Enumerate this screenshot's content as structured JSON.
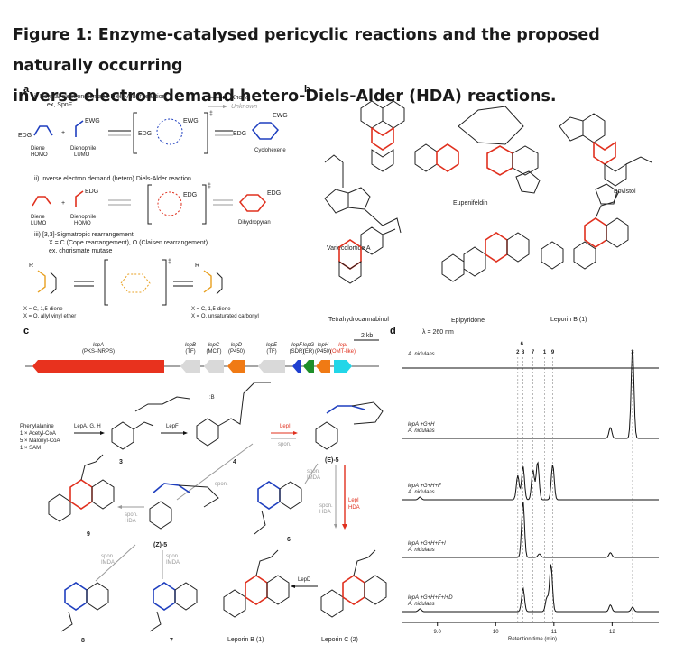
{
  "figure": {
    "title_line1": "Figure 1: Enzyme-catalysed pericyclic reactions and the proposed naturally occurring",
    "title_line2": "inverse electron demand hetero-Diels-Alder (HDA) reactions."
  },
  "panel_a": {
    "letter": "a",
    "i_heading": "i)  Normal electron demand Diels-Alder reaction",
    "i_sub": "ex, SpnF",
    "legend_known": "Known",
    "legend_unknown": "Unknown",
    "edg": "EDG",
    "ewg": "EWG",
    "diene_homo": [
      "Diene",
      "HOMO"
    ],
    "dienophile_lumo": [
      "Dienophile",
      "LUMO"
    ],
    "cyclohexene": "Cyclohexene",
    "ii_heading": "ii)  Inverse electron demand (hetero) Diels-Alder reaction",
    "diene_lumo": [
      "Diene",
      "LUMO"
    ],
    "dienophile_homo": [
      "Dienophile",
      "HOMO"
    ],
    "dihydropyran": "Dihydropyran",
    "iii_heading": "iii)  [3,3]-Sigmatropic rearrangement",
    "iii_sub1": "X = C (Cope rearrangement), O (Claisen rearrangement)",
    "iii_sub2": "ex, chorismate mutase",
    "iii_left1": "X = C, 1,5-diene",
    "iii_left2": "X = O, allyl vinyl ether",
    "iii_right1": "X = C, 1,5-diene",
    "iii_right2": "X = O, unsaturated carbonyl",
    "dagger": "‡"
  },
  "panel_b": {
    "letter": "b",
    "compounds": [
      "Variecolortide A",
      "Eupenifeldin",
      "Bovistol",
      "Tetrahydrocannabinol",
      "Epipyridone",
      "Leporin B (1)"
    ]
  },
  "panel_c": {
    "letter": "c",
    "scale": "2 kb",
    "genes": [
      {
        "name": "lepA",
        "role": "(PKS–NRPS)",
        "color": "#e8321e"
      },
      {
        "name": "lepB",
        "role": "(TF)",
        "color": "#d9d9d9"
      },
      {
        "name": "lepC",
        "role": "(MCT)",
        "color": "#d9d9d9"
      },
      {
        "name": "lepD",
        "role": "(P450)",
        "color": "#f07a14"
      },
      {
        "name": "lepE",
        "role": "(TF)",
        "color": "#d9d9d9"
      },
      {
        "name": "lepF",
        "role": "(SDR)",
        "color": "#1f3fd0"
      },
      {
        "name": "lepG",
        "role": "(ER)",
        "color": "#1e8f2a"
      },
      {
        "name": "lepH",
        "role": "(P450)",
        "color": "#f07a14"
      },
      {
        "name": "lepI",
        "role": "(OMT-like)",
        "color": "#22d6e8"
      }
    ],
    "precursors": [
      "Phenylalanine",
      "1 × Acetyl-CoA",
      "5 × Malonyl-CoA",
      "1 × SAM"
    ],
    "lepAGH": "LepA, G, H",
    "lepF": "LepF",
    "lepI": "LepI",
    "lepI_hda": [
      "LepI",
      "HDA"
    ],
    "lepD": "LepD",
    "spon": "spon.",
    "spon_hda": [
      "spon.",
      "HDA"
    ],
    "spon_imda": [
      "spon.",
      "IMDA"
    ],
    "base": ":B",
    "labels": {
      "c3": "3",
      "c4": "4",
      "c5e": "(E)-5",
      "c5z": "(Z)-5",
      "c6": "6",
      "c7": "7",
      "c8": "8",
      "c9": "9",
      "leporinB": "Leporin B (1)",
      "leporinC": "Leporin C (2)"
    }
  },
  "panel_d": {
    "letter": "d",
    "lambda": "λ = 260 nm",
    "peak_labels_top": [
      "6"
    ],
    "peak_labels": [
      "2",
      "8",
      "7",
      "1",
      "9",
      "3"
    ],
    "traces": [
      {
        "line1": "A. nidulans",
        "line2": ""
      },
      {
        "line1": "lepA +G+H",
        "line2": "A. nidulans"
      },
      {
        "line1": "lepA +G+H+F",
        "line2": "A. nidulans"
      },
      {
        "line1": "lepA +G+H+F+I",
        "line2": "A. nidulans"
      },
      {
        "line1": "lepA +G+H+F+I+D",
        "line2": "A. nidulans"
      }
    ],
    "x_ticks": [
      "9.0",
      "10",
      "11",
      "12"
    ],
    "xlabel": "Retention time (min)"
  },
  "chart_data": {
    "type": "line",
    "title": "λ = 260 nm",
    "xlabel": "Retention time (min)",
    "ylabel": "",
    "xlim": [
      8.4,
      12.8
    ],
    "x_ticks": [
      9.0,
      10,
      11,
      12
    ],
    "peak_positions": {
      "2": 10.38,
      "6": 10.45,
      "8": 10.47,
      "7": 10.64,
      "1": 10.84,
      "9": 10.98,
      "3": 12.35
    },
    "series": [
      {
        "name": "A. nidulans",
        "peaks": []
      },
      {
        "name": "lepA +G+H / A. nidulans",
        "peaks": [
          {
            "x": 11.97,
            "h": 0.12
          },
          {
            "x": 12.35,
            "h": 1.0
          }
        ]
      },
      {
        "name": "lepA +G+H+F / A. nidulans",
        "peaks": [
          {
            "x": 8.7,
            "h": 0.05
          },
          {
            "x": 10.38,
            "h": 0.45
          },
          {
            "x": 10.47,
            "h": 0.62
          },
          {
            "x": 10.64,
            "h": 0.55
          },
          {
            "x": 10.72,
            "h": 0.7
          },
          {
            "x": 10.98,
            "h": 0.65
          }
        ]
      },
      {
        "name": "lepA +G+H+F+I / A. nidulans",
        "peaks": [
          {
            "x": 10.47,
            "h": 0.95
          },
          {
            "x": 10.75,
            "h": 0.06
          },
          {
            "x": 11.97,
            "h": 0.08
          }
        ]
      },
      {
        "name": "lepA +G+H+F+I+D / A. nidulans",
        "peaks": [
          {
            "x": 8.7,
            "h": 0.05
          },
          {
            "x": 10.47,
            "h": 0.42
          },
          {
            "x": 10.88,
            "h": 0.25
          },
          {
            "x": 10.95,
            "h": 0.85
          },
          {
            "x": 11.97,
            "h": 0.12
          },
          {
            "x": 12.35,
            "h": 0.08
          }
        ]
      }
    ]
  }
}
